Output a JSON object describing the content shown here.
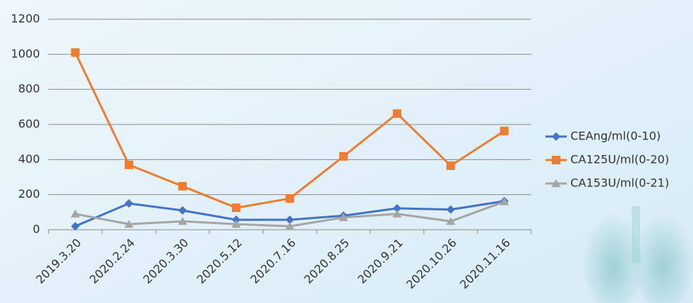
{
  "chart_data": {
    "type": "line",
    "categories": [
      "2019.3.20",
      "2020.2.24",
      "2020.3.30",
      "2020.5.12",
      "2020.7.16",
      "2020.8.25",
      "2020.9.21",
      "2020.10.26",
      "2020.11.16"
    ],
    "series": [
      {
        "name": "CEAng/ml(0-10)",
        "color": "#4472c4",
        "marker": "diamond",
        "values": [
          20,
          150,
          110,
          57,
          57,
          80,
          122,
          115,
          163
        ]
      },
      {
        "name": "CA125U/ml(0-20)",
        "color": "#ed7d31",
        "marker": "square",
        "values": [
          1010,
          370,
          248,
          125,
          178,
          418,
          662,
          365,
          563
        ]
      },
      {
        "name": "CA153U/ml(0-21)",
        "color": "#a5a5a5",
        "marker": "triangle",
        "values": [
          90,
          32,
          48,
          32,
          20,
          70,
          90,
          48,
          160
        ]
      }
    ],
    "ylim": [
      0,
      1200
    ],
    "yticks": [
      0,
      200,
      400,
      600,
      800,
      1000,
      1200
    ],
    "grid": true,
    "legend": "right"
  }
}
